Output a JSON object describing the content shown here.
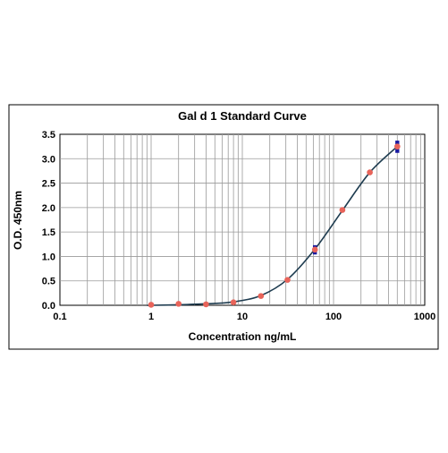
{
  "chart_data": {
    "type": "scatter",
    "title": "Gal d 1 Standard Curve",
    "xlabel": "Concentration ng/mL",
    "ylabel": "O.D. 450nm",
    "x_scale": "log",
    "xlim": [
      0.1,
      1000
    ],
    "ylim": [
      0,
      3.5
    ],
    "x_ticks": [
      0.1,
      1,
      10,
      100,
      1000
    ],
    "x_tick_labels": [
      "0.1",
      "1",
      "10",
      "100",
      "1000"
    ],
    "y_ticks": [
      0,
      0.5,
      1,
      1.5,
      2,
      2.5,
      3,
      3.5
    ],
    "y_tick_labels": [
      "0.0",
      "0.5",
      "1.0",
      "1.5",
      "2.0",
      "2.5",
      "3.0",
      "3.5"
    ],
    "grid": true,
    "legend": "none",
    "series": [
      {
        "color": "#1a1aa0",
        "marker": "square",
        "x": [
          1,
          2,
          4,
          8,
          16,
          31.25,
          62.5,
          125,
          250,
          500
        ],
        "y": [
          0.01,
          0.03,
          0.02,
          0.06,
          0.19,
          0.52,
          1.08,
          1.95,
          2.72,
          3.16
        ]
      },
      {
        "color": "#1a1aa0",
        "marker": "square",
        "x": [
          1,
          2,
          4,
          8,
          16,
          31.25,
          62.5,
          125,
          250,
          500
        ],
        "y": [
          0.01,
          0.03,
          0.02,
          0.06,
          0.19,
          0.52,
          1.19,
          1.95,
          2.72,
          3.33
        ]
      },
      {
        "color": "#e8645a",
        "marker": "diamond",
        "x": [
          1,
          2,
          4,
          8,
          16,
          31.25,
          62.5,
          125,
          250,
          500
        ],
        "y": [
          0.01,
          0.03,
          0.02,
          0.06,
          0.19,
          0.52,
          1.14,
          1.95,
          2.72,
          3.25
        ]
      },
      {
        "type": "line",
        "color": "#1e3c50",
        "x": [
          0.9,
          1,
          2,
          4,
          8,
          16,
          31.25,
          62.5,
          125,
          250,
          500
        ],
        "y": [
          0.0,
          0.0,
          0.01,
          0.03,
          0.07,
          0.2,
          0.53,
          1.15,
          1.94,
          2.72,
          3.25
        ]
      }
    ]
  }
}
